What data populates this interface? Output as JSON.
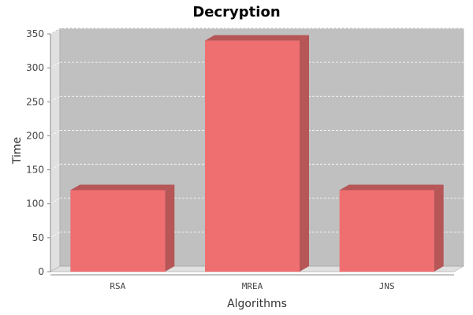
{
  "chart_data": {
    "type": "bar",
    "title": "Decryption",
    "xlabel": "Algorithms",
    "ylabel": "Time",
    "categories": [
      "RSA",
      "MREA",
      "JNS"
    ],
    "values": [
      120,
      340,
      120
    ],
    "ylim": [
      0,
      350
    ],
    "yticks": [
      0,
      50,
      100,
      150,
      200,
      250,
      300,
      350
    ],
    "grid": true,
    "legend": "none",
    "three_d": true,
    "colors": {
      "bar_front": "#ef6f71",
      "bar_top": "#b65657",
      "bar_side": "#b65657",
      "plot_background": "#c0c0c0",
      "plot_wall": "#e0e0e0",
      "gridline": "#ffffff"
    }
  }
}
